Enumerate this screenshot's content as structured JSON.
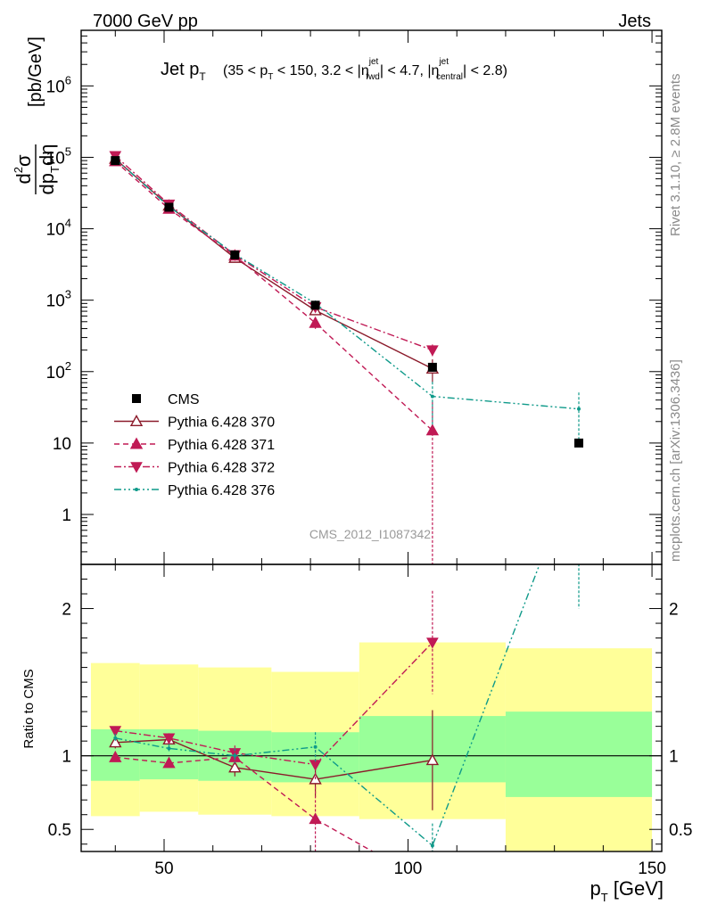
{
  "header": {
    "left": "7000 GeV pp",
    "right": "Jets"
  },
  "side_labels": {
    "rivet": "Rivet 3.1.10, ≥ 2.8M events",
    "source": "mcplots.cern.ch [arXiv:1306.3436]"
  },
  "watermark": "CMS_2012_I1087342",
  "title": {
    "main": "Jet p",
    "main_sub": "T",
    "cond_1": "(35 < p",
    "cond_1_sub": "T",
    "cond_2": " < 150, 3.2 < |η",
    "cond_2_sup": "jet",
    "cond_2_sub": "fwd",
    "cond_3": "| < 4.7, |η",
    "cond_3_sup": "jet",
    "cond_3_sub": "central",
    "cond_4": "| < 2.8)"
  },
  "axes": {
    "xlabel": "p",
    "xlabel_sub": "T",
    "xlabel_unit": " [GeV]",
    "ylabel_unit": "[pb/GeV]",
    "ratio_ylabel": "Ratio to CMS"
  },
  "chart_data": {
    "type": "scatter",
    "x_range": [
      33,
      152
    ],
    "y_range_log": [
      0.2,
      6000000
    ],
    "ratio_y_range": [
      0.35,
      2.3
    ],
    "x_ticks": [
      50,
      100,
      150
    ],
    "y_ticks": [
      {
        "v": 1,
        "label": "1"
      },
      {
        "v": 10,
        "label": "10"
      },
      {
        "v": 100,
        "label": "10",
        "exp": "2"
      },
      {
        "v": 1000,
        "label": "10",
        "exp": "3"
      },
      {
        "v": 10000,
        "label": "10",
        "exp": "4"
      },
      {
        "v": 100000,
        "label": "10",
        "exp": "5"
      },
      {
        "v": 1000000,
        "label": "10",
        "exp": "6"
      }
    ],
    "ratio_y_ticks": [
      {
        "v": 0.5,
        "label": "0.5"
      },
      {
        "v": 1,
        "label": "1"
      },
      {
        "v": 2,
        "label": "2"
      }
    ],
    "bins": [
      35,
      45,
      57,
      72,
      90,
      120,
      150
    ],
    "data": {
      "name": "CMS",
      "x": [
        40,
        51,
        64.5,
        81,
        105,
        135
      ],
      "y": [
        90000,
        20000,
        4300,
        850,
        115,
        10
      ],
      "band_inner": [
        [
          0.83,
          1.18
        ],
        [
          0.84,
          1.18
        ],
        [
          0.83,
          1.17
        ],
        [
          0.82,
          1.16
        ],
        [
          0.82,
          1.27
        ],
        [
          0.72,
          1.3
        ]
      ],
      "band_outer": [
        [
          0.59,
          1.63
        ],
        [
          0.62,
          1.62
        ],
        [
          0.6,
          1.6
        ],
        [
          0.59,
          1.57
        ],
        [
          0.57,
          1.77
        ],
        [
          0.3,
          1.73
        ]
      ]
    },
    "series": [
      {
        "name": "Pythia 6.428 370",
        "color": "#8b1a2a",
        "marker": "triangle-open",
        "dash": "",
        "x": [
          40,
          51,
          64.5,
          81,
          105
        ],
        "y": [
          95000,
          21000,
          3900,
          720,
          110
        ],
        "yerr": [
          0.04,
          0.04,
          0.06,
          0.1,
          0.35
        ],
        "ratio": [
          1.09,
          1.11,
          0.92,
          0.84,
          0.97
        ],
        "ratio_err": [
          0.04,
          0.04,
          0.06,
          0.12,
          0.34
        ]
      },
      {
        "name": "Pythia 6.428 371",
        "color": "#c01a55",
        "marker": "triangle-up",
        "dash": "6,4",
        "x": [
          40,
          51,
          64.5,
          81,
          105
        ],
        "y": [
          88000,
          19000,
          4200,
          480,
          15
        ],
        "yerr": [
          0.04,
          0.04,
          0.06,
          0.2,
          1.5
        ],
        "ratio": [
          0.99,
          0.95,
          0.99,
          0.57,
          0.12
        ],
        "ratio_err": [
          0.03,
          0.03,
          0.06,
          0.22,
          0.3
        ]
      },
      {
        "name": "Pythia 6.428 372",
        "color": "#c01a55",
        "marker": "triangle-down",
        "dash": "8,3,2,3",
        "x": [
          40,
          51,
          64.5,
          81,
          105
        ],
        "y": [
          105000,
          22000,
          4300,
          800,
          200
        ],
        "yerr": [
          0.04,
          0.04,
          0.06,
          0.1,
          0.2
        ],
        "ratio": [
          1.17,
          1.12,
          1.02,
          0.94,
          1.77
        ],
        "ratio_err": [
          0.03,
          0.03,
          0.05,
          0.1,
          0.35
        ]
      },
      {
        "name": "Pythia 6.428 376",
        "color": "#0f9a8a",
        "marker": "dot",
        "dash": "8,3,2,3,2,3",
        "x": [
          40,
          51,
          64.5,
          81,
          105,
          135
        ],
        "y": [
          95000,
          20500,
          4400,
          900,
          45,
          30
        ],
        "yerr": [
          0.04,
          0.04,
          0.06,
          0.1,
          0.6,
          0.7
        ],
        "ratio": [
          1.12,
          1.05,
          1.0,
          1.06,
          0.39,
          3.0
        ],
        "ratio_err": [
          0.03,
          0.03,
          0.05,
          0.1,
          0.15,
          1.0
        ]
      }
    ]
  }
}
